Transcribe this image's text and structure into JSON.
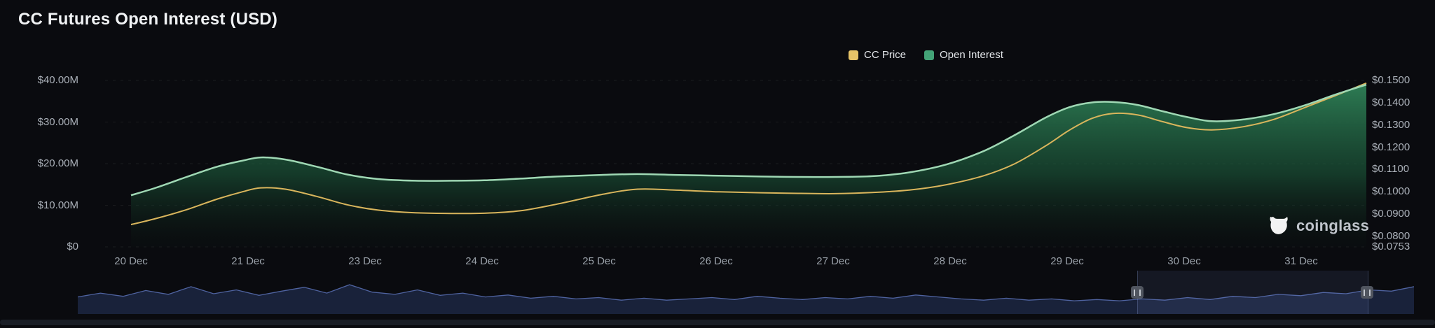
{
  "watermark": {
    "label": "coinglass"
  },
  "chart_data": {
    "type": "area",
    "title": "CC Futures Open Interest (USD)",
    "legend": [
      {
        "label": "CC Price",
        "color": "#e7c468"
      },
      {
        "label": "Open Interest",
        "color": "#43a377"
      }
    ],
    "x_labels": [
      "20 Dec",
      "21 Dec",
      "23 Dec",
      "24 Dec",
      "25 Dec",
      "26 Dec",
      "27 Dec",
      "28 Dec",
      "29 Dec",
      "30 Dec",
      "31 Dec"
    ],
    "left_axis": {
      "unit": "USD millions",
      "min": 0,
      "max": 40,
      "ticks": [
        {
          "label": "$40.00M",
          "value": 40
        },
        {
          "label": "$30.00M",
          "value": 30
        },
        {
          "label": "$20.00M",
          "value": 20
        },
        {
          "label": "$10.00M",
          "value": 10
        },
        {
          "label": "$0",
          "value": 0
        }
      ]
    },
    "right_axis": {
      "unit": "USD",
      "min": 0.0753,
      "max": 0.15,
      "ticks": [
        {
          "label": "$0.1500",
          "value": 0.15
        },
        {
          "label": "$0.1400",
          "value": 0.14
        },
        {
          "label": "$0.1300",
          "value": 0.13
        },
        {
          "label": "$0.1200",
          "value": 0.12
        },
        {
          "label": "$0.1100",
          "value": 0.11
        },
        {
          "label": "$0.1000",
          "value": 0.1
        },
        {
          "label": "$0.0900",
          "value": 0.09
        },
        {
          "label": "$0.0800",
          "value": 0.08
        },
        {
          "label": "$0.0753",
          "value": 0.0753
        }
      ]
    },
    "series": [
      {
        "name": "Open Interest",
        "axis": "left",
        "kind": "area",
        "line_color": "#9fd8b4",
        "fill_from": "#2f8157",
        "fill_to": "#0c1d13",
        "points": [
          [
            0.0,
            12.4
          ],
          [
            0.02,
            14.2
          ],
          [
            0.045,
            16.8
          ],
          [
            0.07,
            19.3
          ],
          [
            0.09,
            20.7
          ],
          [
            0.105,
            21.5
          ],
          [
            0.125,
            21.0
          ],
          [
            0.15,
            19.3
          ],
          [
            0.175,
            17.4
          ],
          [
            0.2,
            16.3
          ],
          [
            0.23,
            15.9
          ],
          [
            0.26,
            15.9
          ],
          [
            0.286,
            16.0
          ],
          [
            0.315,
            16.4
          ],
          [
            0.345,
            16.9
          ],
          [
            0.381,
            17.3
          ],
          [
            0.41,
            17.5
          ],
          [
            0.44,
            17.3
          ],
          [
            0.476,
            17.1
          ],
          [
            0.51,
            16.9
          ],
          [
            0.54,
            16.8
          ],
          [
            0.57,
            16.8
          ],
          [
            0.6,
            17.0
          ],
          [
            0.63,
            17.9
          ],
          [
            0.66,
            19.8
          ],
          [
            0.69,
            23.0
          ],
          [
            0.715,
            26.8
          ],
          [
            0.74,
            31.0
          ],
          [
            0.76,
            33.6
          ],
          [
            0.778,
            34.7
          ],
          [
            0.795,
            34.8
          ],
          [
            0.815,
            34.1
          ],
          [
            0.835,
            32.6
          ],
          [
            0.855,
            31.2
          ],
          [
            0.875,
            30.2
          ],
          [
            0.9,
            30.6
          ],
          [
            0.925,
            31.9
          ],
          [
            0.95,
            34.0
          ],
          [
            0.975,
            36.6
          ],
          [
            1.0,
            39.0
          ]
        ]
      },
      {
        "name": "CC Price",
        "axis": "right",
        "kind": "line",
        "line_color": "#d9b55c",
        "points": [
          [
            0.0,
            0.0853
          ],
          [
            0.02,
            0.088
          ],
          [
            0.045,
            0.092
          ],
          [
            0.07,
            0.0968
          ],
          [
            0.09,
            0.1
          ],
          [
            0.105,
            0.1018
          ],
          [
            0.125,
            0.1012
          ],
          [
            0.15,
            0.098
          ],
          [
            0.175,
            0.0942
          ],
          [
            0.2,
            0.0918
          ],
          [
            0.23,
            0.0906
          ],
          [
            0.26,
            0.0903
          ],
          [
            0.286,
            0.0904
          ],
          [
            0.315,
            0.0915
          ],
          [
            0.345,
            0.0945
          ],
          [
            0.381,
            0.0988
          ],
          [
            0.41,
            0.1012
          ],
          [
            0.44,
            0.1008
          ],
          [
            0.476,
            0.1
          ],
          [
            0.51,
            0.0996
          ],
          [
            0.54,
            0.0993
          ],
          [
            0.57,
            0.0992
          ],
          [
            0.6,
            0.0997
          ],
          [
            0.63,
            0.1008
          ],
          [
            0.66,
            0.1032
          ],
          [
            0.69,
            0.1072
          ],
          [
            0.715,
            0.1125
          ],
          [
            0.74,
            0.1205
          ],
          [
            0.76,
            0.1278
          ],
          [
            0.778,
            0.133
          ],
          [
            0.795,
            0.1352
          ],
          [
            0.815,
            0.1345
          ],
          [
            0.835,
            0.1315
          ],
          [
            0.855,
            0.1288
          ],
          [
            0.875,
            0.1278
          ],
          [
            0.9,
            0.1292
          ],
          [
            0.925,
            0.1325
          ],
          [
            0.95,
            0.1378
          ],
          [
            0.975,
            0.1432
          ],
          [
            1.0,
            0.1488
          ]
        ]
      }
    ],
    "navigator": {
      "values": [
        0.4,
        0.52,
        0.42,
        0.6,
        0.48,
        0.72,
        0.5,
        0.62,
        0.45,
        0.58,
        0.7,
        0.52,
        0.78,
        0.55,
        0.48,
        0.62,
        0.45,
        0.52,
        0.4,
        0.46,
        0.36,
        0.42,
        0.34,
        0.38,
        0.3,
        0.36,
        0.3,
        0.34,
        0.38,
        0.32,
        0.42,
        0.36,
        0.32,
        0.38,
        0.34,
        0.42,
        0.36,
        0.46,
        0.4,
        0.34,
        0.3,
        0.36,
        0.3,
        0.34,
        0.28,
        0.32,
        0.28,
        0.34,
        0.3,
        0.38,
        0.32,
        0.42,
        0.38,
        0.48,
        0.44,
        0.54,
        0.5,
        0.62,
        0.58,
        0.72
      ],
      "selection": [
        0.793,
        0.965
      ]
    }
  }
}
